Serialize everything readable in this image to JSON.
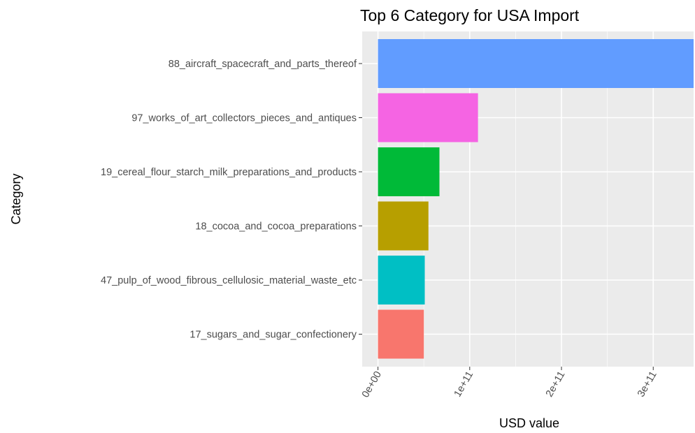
{
  "chart_data": {
    "type": "bar",
    "orientation": "horizontal",
    "title": "Top 6 Category for USA Import",
    "xlabel": "USD value",
    "ylabel": "Category",
    "categories": [
      "88_aircraft_spacecraft_and_parts_thereof",
      "97_works_of_art_collectors_pieces_and_antiques",
      "19_cereal_flour_starch_milk_preparations_and_products",
      "18_cocoa_and_cocoa_preparations",
      "47_pulp_of_wood_fibrous_cellulosic_material_waste_etc",
      "17_sugars_and_sugar_confectionery"
    ],
    "values": [
      344000000000,
      109000000000,
      67000000000,
      55000000000,
      51000000000,
      50000000000
    ],
    "colors": [
      "#619CFF",
      "#F564E3",
      "#00BA38",
      "#B79F00",
      "#00BFC4",
      "#F8766D"
    ],
    "x_ticks": [
      0,
      100000000000,
      200000000000,
      300000000000
    ],
    "x_tick_labels": [
      "0e+00",
      "1e+11",
      "2e+11",
      "3e+11"
    ],
    "xlim": [
      -17200000000,
      344000000000
    ],
    "grid": true,
    "panel_background": "#EBEBEB",
    "grid_color": "#FFFFFF"
  }
}
